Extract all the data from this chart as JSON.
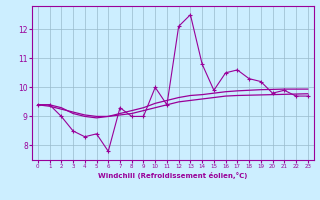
{
  "xlabel": "Windchill (Refroidissement éolien,°C)",
  "x": [
    0,
    1,
    2,
    3,
    4,
    5,
    6,
    7,
    8,
    9,
    10,
    11,
    12,
    13,
    14,
    15,
    16,
    17,
    18,
    19,
    20,
    21,
    22,
    23
  ],
  "line1": [
    9.4,
    9.4,
    9.0,
    8.5,
    8.3,
    8.4,
    7.8,
    9.3,
    9.0,
    9.0,
    10.0,
    9.4,
    12.1,
    12.5,
    10.8,
    9.9,
    10.5,
    10.6,
    10.3,
    10.2,
    9.8,
    9.9,
    9.7,
    9.7
  ],
  "line2": [
    9.4,
    9.35,
    9.25,
    9.15,
    9.05,
    9.0,
    9.0,
    9.05,
    9.1,
    9.2,
    9.3,
    9.4,
    9.5,
    9.55,
    9.6,
    9.65,
    9.7,
    9.72,
    9.73,
    9.74,
    9.75,
    9.76,
    9.77,
    9.78
  ],
  "line3": [
    9.4,
    9.4,
    9.3,
    9.1,
    9.0,
    8.95,
    9.0,
    9.1,
    9.2,
    9.3,
    9.45,
    9.55,
    9.65,
    9.72,
    9.75,
    9.8,
    9.85,
    9.88,
    9.9,
    9.92,
    9.93,
    9.94,
    9.94,
    9.94
  ],
  "line_color": "#990099",
  "bg_color": "#cceeff",
  "grid_color": "#99bbcc",
  "ylim": [
    7.5,
    12.8
  ],
  "xlim": [
    -0.5,
    23.5
  ],
  "yticks": [
    8,
    9,
    10,
    11,
    12
  ],
  "xticks": [
    0,
    1,
    2,
    3,
    4,
    5,
    6,
    7,
    8,
    9,
    10,
    11,
    12,
    13,
    14,
    15,
    16,
    17,
    18,
    19,
    20,
    21,
    22,
    23
  ]
}
